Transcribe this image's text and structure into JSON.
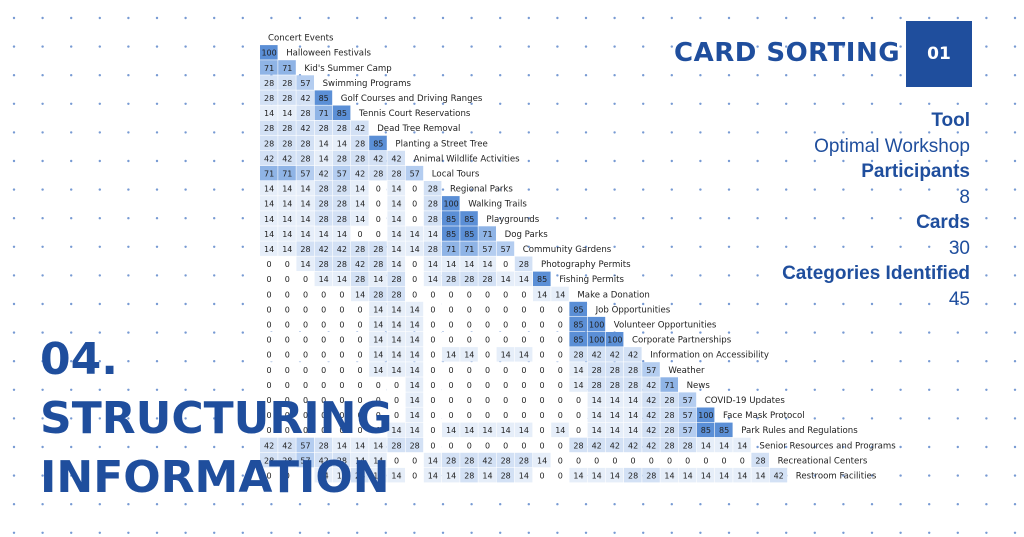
{
  "header": {
    "title": "CARD SORTING",
    "number": "01"
  },
  "stats": [
    {
      "label": "Tool",
      "value": "Optimal Workshop"
    },
    {
      "label": "Participants",
      "value": "8"
    },
    {
      "label": "Cards",
      "value": "30"
    },
    {
      "label": "Categories Identified",
      "value": "45"
    }
  ],
  "section": {
    "number": "04.",
    "line1": "STRUCTURING",
    "line2": "INFORMATION"
  },
  "colors": {
    "brand": "#1f4e9d",
    "dot": "#4a78c4"
  },
  "matrix": {
    "labels": [
      "Concert Events",
      "Halloween Festivals",
      "Kid's Summer Camp",
      "Swimming Programs",
      "Golf Courses and Driving Ranges",
      "Tennis Court Reservations",
      "Dead Tree Removal",
      "Planting a Street Tree",
      "Animal Wildlife Activities",
      "Local Tours",
      "Regional Parks",
      "Walking Trails",
      "Playgrounds",
      "Dog Parks",
      "Community Gardens",
      "Photography Permits",
      "Fishing Permits",
      "Make a Donation",
      "Job Opportunities",
      "Volunteer Opportunities",
      "Corporate Partnerships",
      "Information on Accessibility",
      "Weather",
      "News",
      "COVID-19 Updates",
      "Face Mask Protocol",
      "Park Rules and Regulations",
      "Senior Resources and Programs",
      "Recreational Centers",
      "Restroom Facilities"
    ],
    "rows": [
      [],
      [
        100
      ],
      [
        71,
        71
      ],
      [
        28,
        28,
        57
      ],
      [
        28,
        28,
        42,
        85
      ],
      [
        14,
        14,
        28,
        71,
        85
      ],
      [
        28,
        28,
        42,
        28,
        28,
        42
      ],
      [
        28,
        28,
        28,
        14,
        14,
        28,
        85
      ],
      [
        42,
        42,
        28,
        14,
        28,
        28,
        42,
        42
      ],
      [
        71,
        71,
        57,
        42,
        57,
        42,
        28,
        28,
        57
      ],
      [
        14,
        14,
        14,
        28,
        28,
        14,
        0,
        14,
        0,
        28
      ],
      [
        14,
        14,
        14,
        28,
        28,
        14,
        0,
        14,
        0,
        28,
        100
      ],
      [
        14,
        14,
        14,
        28,
        28,
        14,
        0,
        14,
        0,
        28,
        85,
        85
      ],
      [
        14,
        14,
        14,
        14,
        14,
        0,
        0,
        14,
        14,
        14,
        85,
        85,
        71
      ],
      [
        14,
        14,
        28,
        42,
        42,
        28,
        28,
        14,
        14,
        28,
        71,
        71,
        57,
        57
      ],
      [
        0,
        0,
        14,
        28,
        28,
        42,
        28,
        14,
        0,
        14,
        14,
        14,
        14,
        0,
        28
      ],
      [
        0,
        0,
        0,
        14,
        14,
        28,
        14,
        28,
        0,
        14,
        28,
        28,
        28,
        14,
        14,
        85
      ],
      [
        0,
        0,
        0,
        0,
        0,
        14,
        28,
        28,
        0,
        0,
        0,
        0,
        0,
        0,
        0,
        14,
        14
      ],
      [
        0,
        0,
        0,
        0,
        0,
        0,
        14,
        14,
        14,
        0,
        0,
        0,
        0,
        0,
        0,
        0,
        0,
        85
      ],
      [
        0,
        0,
        0,
        0,
        0,
        0,
        14,
        14,
        14,
        0,
        0,
        0,
        0,
        0,
        0,
        0,
        0,
        85,
        100
      ],
      [
        0,
        0,
        0,
        0,
        0,
        0,
        14,
        14,
        14,
        0,
        0,
        0,
        0,
        0,
        0,
        0,
        0,
        85,
        100,
        100
      ],
      [
        0,
        0,
        0,
        0,
        0,
        0,
        14,
        14,
        14,
        0,
        14,
        14,
        0,
        14,
        14,
        0,
        0,
        28,
        42,
        42,
        42
      ],
      [
        0,
        0,
        0,
        0,
        0,
        0,
        14,
        14,
        14,
        0,
        0,
        0,
        0,
        0,
        0,
        0,
        0,
        14,
        28,
        28,
        28,
        57
      ],
      [
        0,
        0,
        0,
        0,
        0,
        0,
        0,
        0,
        14,
        0,
        0,
        0,
        0,
        0,
        0,
        0,
        0,
        14,
        28,
        28,
        28,
        42,
        71
      ],
      [
        0,
        0,
        0,
        0,
        0,
        0,
        0,
        0,
        14,
        0,
        0,
        0,
        0,
        0,
        0,
        0,
        0,
        0,
        14,
        14,
        14,
        42,
        28,
        57
      ],
      [
        0,
        0,
        0,
        0,
        0,
        0,
        0,
        0,
        14,
        0,
        0,
        0,
        0,
        0,
        0,
        0,
        0,
        0,
        14,
        14,
        14,
        42,
        28,
        57,
        100
      ],
      [
        0,
        0,
        0,
        0,
        0,
        0,
        0,
        14,
        14,
        0,
        14,
        14,
        14,
        14,
        14,
        0,
        14,
        0,
        14,
        14,
        14,
        42,
        28,
        57,
        85,
        85
      ],
      [
        42,
        42,
        57,
        28,
        14,
        14,
        14,
        28,
        28,
        0,
        0,
        0,
        0,
        0,
        0,
        0,
        0,
        28,
        42,
        42,
        42,
        42,
        28,
        28,
        14,
        14,
        14
      ],
      [
        28,
        28,
        57,
        42,
        28,
        14,
        14,
        0,
        0,
        14,
        28,
        28,
        42,
        28,
        28,
        14,
        0,
        0,
        0,
        0,
        0,
        0,
        0,
        0,
        0,
        0,
        0,
        28
      ],
      [
        0,
        0,
        0,
        14,
        14,
        28,
        14,
        14,
        0,
        14,
        14,
        28,
        14,
        28,
        14,
        0,
        0,
        14,
        14,
        14,
        28,
        28,
        14,
        14,
        14,
        14,
        14,
        14,
        42
      ]
    ]
  }
}
